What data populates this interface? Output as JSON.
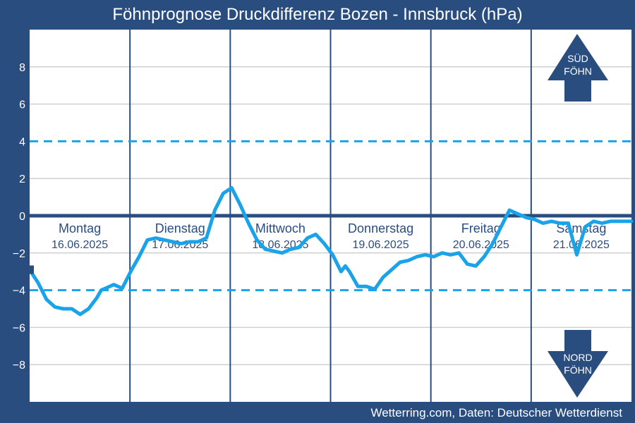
{
  "title": "Föhnprognose Druckdifferenz Bozen - Innsbruck (hPa)",
  "footer": "Wetterring.com, Daten: Deutscher Wetterdienst",
  "colors": {
    "frame": "#2a4d80",
    "plot_bg": "#ffffff",
    "grid": "#d0d0d0",
    "line": "#1aa3e8",
    "threshold": "#1aa3e8",
    "zero_line": "#2a4d80",
    "day_divider": "#2a4d80",
    "label_text": "#2a4d80",
    "arrow": "#2a4d80"
  },
  "arrows": {
    "up_label_line1": "SÜD",
    "up_label_line2": "FÖHN",
    "down_label_line1": "NORD",
    "down_label_line2": "FÖHN"
  },
  "chart_data": {
    "type": "line",
    "title": "Föhnprognose Druckdifferenz Bozen - Innsbruck (hPa)",
    "xlabel": "",
    "ylabel": "",
    "ylim": [
      -10,
      10
    ],
    "xlim": [
      0,
      143
    ],
    "y_ticks": [
      8,
      6,
      4,
      2,
      0,
      -2,
      -4,
      -6,
      -8
    ],
    "grid": true,
    "thresholds": [
      4,
      -4
    ],
    "zero_line": 0,
    "days": [
      {
        "name": "Montag",
        "date": "16.06.2025"
      },
      {
        "name": "Dienstag",
        "date": "17.06.2025"
      },
      {
        "name": "Mittwoch",
        "date": "18.06.2025"
      },
      {
        "name": "Donnerstag",
        "date": "19.06.2025"
      },
      {
        "name": "Freitag",
        "date": "20.06.2025"
      },
      {
        "name": "Samstag",
        "date": "21.06.2025"
      }
    ],
    "series": [
      {
        "x": [
          0,
          2,
          4,
          6,
          8,
          10,
          12,
          14,
          16,
          17,
          18,
          20,
          22,
          24,
          26,
          28,
          30,
          32,
          34,
          36,
          38,
          40,
          42,
          44,
          46,
          48,
          50,
          52,
          54,
          56,
          58,
          60,
          62,
          64,
          66,
          68,
          70,
          72,
          74,
          75,
          76,
          78,
          80,
          82,
          84,
          86,
          88,
          90,
          92,
          94,
          96,
          98,
          100,
          102,
          104,
          106,
          108,
          110,
          112,
          114,
          116,
          118,
          120,
          122,
          124,
          126,
          128,
          130,
          132,
          134,
          136,
          138,
          140,
          142,
          143
        ],
        "values": [
          -2.9,
          -3.6,
          -4.5,
          -4.9,
          -5.0,
          -5.0,
          -5.3,
          -5.0,
          -4.4,
          -4.0,
          -3.9,
          -3.7,
          -3.9,
          -3.0,
          -2.2,
          -1.3,
          -1.2,
          -1.3,
          -1.4,
          -1.5,
          -1.4,
          -1.4,
          -1.2,
          0.3,
          1.2,
          1.5,
          0.6,
          -0.4,
          -1.3,
          -1.8,
          -1.9,
          -2.0,
          -1.8,
          -1.7,
          -1.2,
          -1.0,
          -1.5,
          -2.1,
          -3.0,
          -2.7,
          -3.0,
          -3.8,
          -3.8,
          -3.95,
          -3.3,
          -2.9,
          -2.5,
          -2.4,
          -2.2,
          -2.1,
          -2.2,
          -2.0,
          -2.1,
          -2.0,
          -2.6,
          -2.7,
          -2.2,
          -1.5,
          -0.6,
          0.3,
          0.1,
          -0.1,
          -0.2,
          -0.4,
          -0.3,
          -0.4,
          -0.4,
          -2.1,
          -0.6,
          -0.3,
          -0.4,
          -0.3,
          -0.3,
          -0.3,
          -0.3
        ]
      }
    ]
  }
}
